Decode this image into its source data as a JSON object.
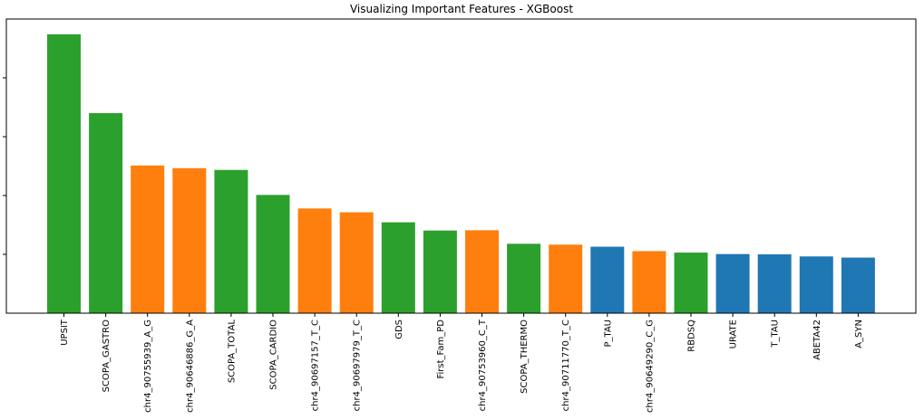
{
  "chart_data": {
    "type": "bar",
    "title": "Visualizing Important Features - XGBoost",
    "xlabel": "",
    "ylabel": "",
    "ylim": [
      0,
      0.1
    ],
    "ytick_values": [
      0.02,
      0.04,
      0.06,
      0.08
    ],
    "grid": false,
    "legend": "none",
    "categories": [
      "UPSIT",
      "SCOPA_GASTRO",
      "chr4_90755939_A_G",
      "chr4_90646886_G_A",
      "SCOPA_TOTAL",
      "SCOPA_CARDIO",
      "chr4_90697157_T_C",
      "chr4_90697979_T_C",
      "GDS",
      "First_Fam_PD",
      "chr4_90753960_C_T",
      "SCOPA_THERMO",
      "chr4_90711770_T_C",
      "P_TAU",
      "chr4_90649290_C_G",
      "RBDSQ",
      "URATE",
      "T_TAU",
      "ABETA42",
      "A_SYN"
    ],
    "values": [
      0.0948,
      0.068,
      0.0502,
      0.0493,
      0.0487,
      0.0402,
      0.0356,
      0.0343,
      0.0309,
      0.0281,
      0.0282,
      0.0236,
      0.0233,
      0.0226,
      0.0211,
      0.0206,
      0.0201,
      0.02,
      0.0193,
      0.0189
    ],
    "bar_colors": [
      "#2ca02c",
      "#2ca02c",
      "#ff7f0e",
      "#ff7f0e",
      "#2ca02c",
      "#2ca02c",
      "#ff7f0e",
      "#ff7f0e",
      "#2ca02c",
      "#2ca02c",
      "#ff7f0e",
      "#2ca02c",
      "#ff7f0e",
      "#1f77b4",
      "#ff7f0e",
      "#2ca02c",
      "#1f77b4",
      "#1f77b4",
      "#1f77b4",
      "#1f77b4"
    ]
  }
}
